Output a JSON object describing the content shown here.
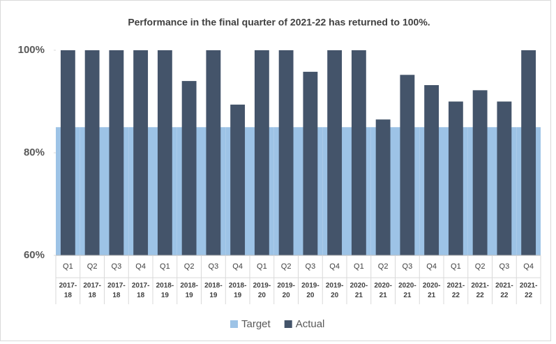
{
  "chart_data": {
    "type": "bar",
    "title": "Performance in the final quarter of 2021-22 has returned to 100%.",
    "categories": [
      "Q1",
      "Q2",
      "Q3",
      "Q4",
      "Q1",
      "Q2",
      "Q3",
      "Q4",
      "Q1",
      "Q2",
      "Q3",
      "Q4",
      "Q1",
      "Q2",
      "Q3",
      "Q4",
      "Q1",
      "Q2",
      "Q3",
      "Q4"
    ],
    "years": [
      "2017-18",
      "2017-18",
      "2017-18",
      "2017-18",
      "2018-19",
      "2018-19",
      "2018-19",
      "2018-19",
      "2019-20",
      "2019-20",
      "2019-20",
      "2019-20",
      "2020-21",
      "2020-21",
      "2020-21",
      "2020-21",
      "2021-22",
      "2021-22",
      "2021-22",
      "2021-22"
    ],
    "series": [
      {
        "name": "Target",
        "color": "#9dc3e6",
        "values": [
          85,
          85,
          85,
          85,
          85,
          85,
          85,
          85,
          85,
          85,
          85,
          85,
          85,
          85,
          85,
          85,
          85,
          85,
          85,
          85
        ]
      },
      {
        "name": "Actual",
        "color": "#44546a",
        "values": [
          100,
          100,
          100,
          100,
          100,
          94,
          100,
          89.4,
          100,
          100,
          95.8,
          100,
          100,
          86.5,
          95.2,
          93.2,
          90,
          92.2,
          90,
          100
        ]
      }
    ],
    "ylim": [
      60,
      100
    ],
    "yticks": [
      {
        "value": 60,
        "label": "60%"
      },
      {
        "value": 80,
        "label": "80%"
      },
      {
        "value": 100,
        "label": "100%"
      }
    ],
    "legend": "bottom"
  }
}
